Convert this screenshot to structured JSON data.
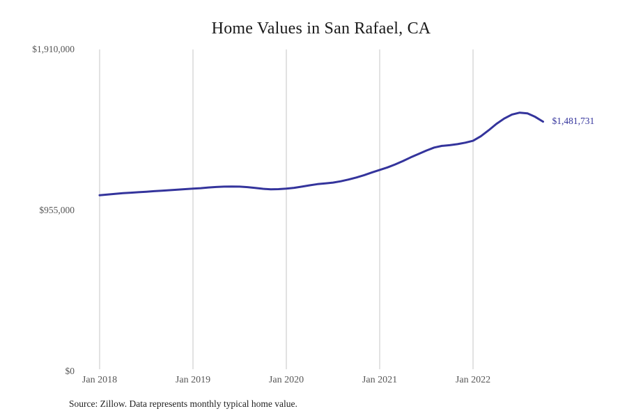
{
  "title": "Home Values in San Rafael, CA",
  "source_note": "Source: Zillow. Data represents monthly typical home value.",
  "colors": {
    "line": "#34349c",
    "grid": "#cfcfcf",
    "tick_text": "#565656",
    "title_text": "#1a1a1a",
    "source_text": "#222222"
  },
  "chart_data": {
    "type": "line",
    "title": "Home Values in San Rafael, CA",
    "xlabel": "",
    "ylabel": "",
    "ylim": [
      0,
      1910000
    ],
    "grid": "vertical-only",
    "legend": "none",
    "x": [
      "Jan 2018",
      "Feb 2018",
      "Mar 2018",
      "Apr 2018",
      "May 2018",
      "Jun 2018",
      "Jul 2018",
      "Aug 2018",
      "Sep 2018",
      "Oct 2018",
      "Nov 2018",
      "Dec 2018",
      "Jan 2019",
      "Feb 2019",
      "Mar 2019",
      "Apr 2019",
      "May 2019",
      "Jun 2019",
      "Jul 2019",
      "Aug 2019",
      "Sep 2019",
      "Oct 2019",
      "Nov 2019",
      "Dec 2019",
      "Jan 2020",
      "Feb 2020",
      "Mar 2020",
      "Apr 2020",
      "May 2020",
      "Jun 2020",
      "Jul 2020",
      "Aug 2020",
      "Sep 2020",
      "Oct 2020",
      "Nov 2020",
      "Dec 2020",
      "Jan 2021",
      "Feb 2021",
      "Mar 2021",
      "Apr 2021",
      "May 2021",
      "Jun 2021",
      "Jul 2021",
      "Aug 2021",
      "Sep 2021",
      "Oct 2021",
      "Nov 2021",
      "Dec 2021",
      "Jan 2022",
      "Feb 2022",
      "Mar 2022",
      "Apr 2022",
      "May 2022",
      "Jun 2022",
      "Jul 2022",
      "Aug 2022",
      "Sep 2022",
      "Oct 2022"
    ],
    "values": [
      1045000,
      1049000,
      1053000,
      1057000,
      1060000,
      1063000,
      1066000,
      1069000,
      1072000,
      1075000,
      1078000,
      1081000,
      1084000,
      1087000,
      1091000,
      1094000,
      1096000,
      1097000,
      1096000,
      1093000,
      1088000,
      1083000,
      1080000,
      1081000,
      1084000,
      1089000,
      1096000,
      1104000,
      1111000,
      1115000,
      1120000,
      1128000,
      1138000,
      1150000,
      1164000,
      1180000,
      1195000,
      1210000,
      1228000,
      1248000,
      1270000,
      1290000,
      1310000,
      1328000,
      1338000,
      1342000,
      1348000,
      1357000,
      1368000,
      1395000,
      1430000,
      1468000,
      1500000,
      1524000,
      1535000,
      1531000,
      1510000,
      1481731
    ],
    "y_ticks": [
      {
        "label": "$1,910,000",
        "value": 1910000
      },
      {
        "label": "$955,000",
        "value": 955000
      },
      {
        "label": "$0",
        "value": 0
      }
    ],
    "x_ticks": [
      {
        "label": "Jan 2018",
        "month_index": 0
      },
      {
        "label": "Jan 2019",
        "month_index": 12
      },
      {
        "label": "Jan 2020",
        "month_index": 24
      },
      {
        "label": "Jan 2021",
        "month_index": 36
      },
      {
        "label": "Jan 2022",
        "month_index": 48
      }
    ],
    "annotation": {
      "text": "$1,481,731",
      "value": 1481731,
      "x": "Oct 2022"
    }
  }
}
